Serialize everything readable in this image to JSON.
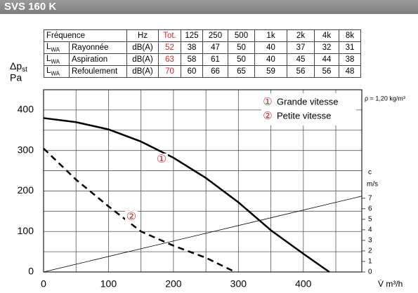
{
  "header": {
    "title": "SVS 160 K"
  },
  "table": {
    "head": {
      "title": "Fréquence",
      "unit": "Hz",
      "total": "Tot.",
      "bands": [
        "125",
        "250",
        "500",
        "1k",
        "2k",
        "4k",
        "8k"
      ]
    },
    "rows": [
      {
        "label": {
          "main": "L",
          "sub": "WA"
        },
        "name": "Rayonnée",
        "unit": "dB(A)",
        "total": 52,
        "bands": [
          38,
          47,
          50,
          40,
          37,
          32,
          31
        ]
      },
      {
        "label": {
          "main": "L",
          "sub": "WA"
        },
        "name": "Aspiration",
        "unit": "dB(A)",
        "total": 63,
        "bands": [
          58,
          61,
          50,
          40,
          45,
          44,
          38
        ]
      },
      {
        "label": {
          "main": "L",
          "sub": "WA"
        },
        "name": "Refoulement",
        "unit": "dB(A)",
        "total": 70,
        "bands": [
          60,
          66,
          65,
          59,
          56,
          56,
          48
        ]
      }
    ]
  },
  "chart_data": {
    "type": "line",
    "y_label": {
      "main": "Δp",
      "sub": "st",
      "unit": "Pa"
    },
    "x_label": "V̇ m³/h",
    "y2_label": {
      "main": "c",
      "unit": "m/s"
    },
    "annotation": "ρ = 1,20 kg/m³",
    "xlim": [
      0,
      490
    ],
    "xticks": [
      0,
      100,
      200,
      300,
      400
    ],
    "xgrid": [
      50,
      150,
      250,
      350,
      450
    ],
    "ylim": [
      0,
      450
    ],
    "yticks": [
      0,
      100,
      200,
      300,
      400
    ],
    "ygrid": [
      50,
      150,
      250,
      350
    ],
    "y2lim": [
      0,
      17.3
    ],
    "y2ticks": [
      0,
      1,
      2,
      3,
      4,
      5,
      6,
      7
    ],
    "grid": true,
    "series": [
      {
        "name": "Grande vitesse",
        "marker": "①",
        "color": "#000000",
        "dash": false,
        "x": [
          0,
          50,
          100,
          150,
          200,
          250,
          300,
          350,
          400,
          440
        ],
        "values": [
          380,
          370,
          352,
          322,
          282,
          232,
          172,
          103,
          45,
          0
        ]
      },
      {
        "name": "Petite vitesse",
        "marker": "②",
        "color": "#000000",
        "dash": true,
        "x": [
          0,
          50,
          100,
          150,
          200,
          250,
          295
        ],
        "values": [
          305,
          228,
          162,
          100,
          65,
          35,
          0
        ]
      }
    ],
    "velocity": {
      "x": [
        0,
        490
      ],
      "values": [
        0,
        7.2
      ],
      "axis": "y2",
      "color": "#000000"
    },
    "marker_color": "#d7262b"
  }
}
